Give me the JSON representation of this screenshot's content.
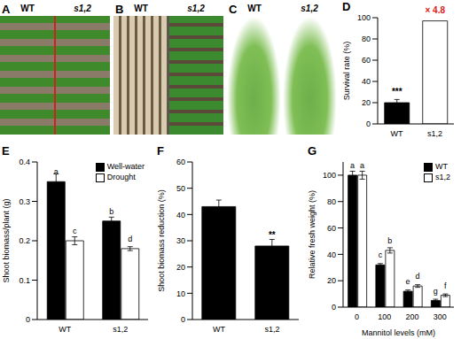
{
  "photos": [
    {
      "panel": "A",
      "labels": [
        "WT",
        "s1,2"
      ]
    },
    {
      "panel": "B",
      "labels": [
        "WT",
        "s1,2"
      ]
    },
    {
      "panel": "C",
      "labels": [
        "WT",
        "s1,2"
      ]
    }
  ],
  "chart_data": [
    {
      "panel": "D",
      "type": "bar",
      "categories": [
        "WT",
        "s1,2"
      ],
      "values": [
        20,
        97
      ],
      "errors": [
        3,
        0
      ],
      "colors": [
        "#000000",
        "#ffffff"
      ],
      "y_label": "Survival rate (%)",
      "ylim": [
        0,
        100
      ],
      "yticks": [
        0,
        20,
        40,
        60,
        80,
        100
      ],
      "annotations": [
        {
          "category": "WT",
          "text": "***",
          "color": "#000000"
        },
        {
          "category": "s1,2",
          "text": "× 4.8",
          "color": "#e02020"
        }
      ]
    },
    {
      "panel": "E",
      "type": "bar",
      "categories": [
        "WT",
        "s1,2"
      ],
      "series": [
        {
          "name": "Well-water",
          "color": "#000000",
          "values": [
            0.35,
            0.25
          ],
          "errors": [
            0.02,
            0.01
          ],
          "letters": [
            "a",
            "b"
          ]
        },
        {
          "name": "Drought",
          "color": "#ffffff",
          "values": [
            0.2,
            0.18
          ],
          "errors": [
            0.01,
            0.005
          ],
          "letters": [
            "c",
            "d"
          ]
        }
      ],
      "y_label": "Shoot biomass/plant (g)",
      "ylim": [
        0,
        0.4
      ],
      "yticks": [
        0,
        0.1,
        0.2,
        0.3,
        0.4
      ],
      "legend": "top-right"
    },
    {
      "panel": "F",
      "type": "bar",
      "categories": [
        "WT",
        "s1,2"
      ],
      "values": [
        43,
        28
      ],
      "errors": [
        2.5,
        2.5
      ],
      "colors": [
        "#000000",
        "#000000"
      ],
      "y_label": "Shoot biomass reduction (%)",
      "ylim": [
        0,
        60
      ],
      "yticks": [
        0,
        10,
        20,
        30,
        40,
        50,
        60
      ],
      "annotations": [
        {
          "category": "s1,2",
          "text": "**",
          "color": "#000000"
        }
      ]
    },
    {
      "panel": "G",
      "type": "bar",
      "categories": [
        "0",
        "100",
        "200",
        "300"
      ],
      "series": [
        {
          "name": "WT",
          "color": "#000000",
          "values": [
            100,
            32,
            12,
            5
          ],
          "errors": [
            3,
            1,
            1,
            1
          ],
          "letters": [
            "a",
            "c",
            "e",
            "g"
          ]
        },
        {
          "name": "s1,2",
          "color": "#ffffff",
          "values": [
            100,
            43,
            16,
            9
          ],
          "errors": [
            3,
            2,
            1,
            1
          ],
          "letters": [
            "a",
            "b",
            "d",
            "f"
          ]
        }
      ],
      "x_label": "Mannitol levels (mM)",
      "y_label": "Relative fresh weight (%)",
      "ylim": [
        0,
        110
      ],
      "yticks": [
        0,
        20,
        40,
        60,
        80,
        100
      ],
      "legend": "top-right"
    }
  ]
}
